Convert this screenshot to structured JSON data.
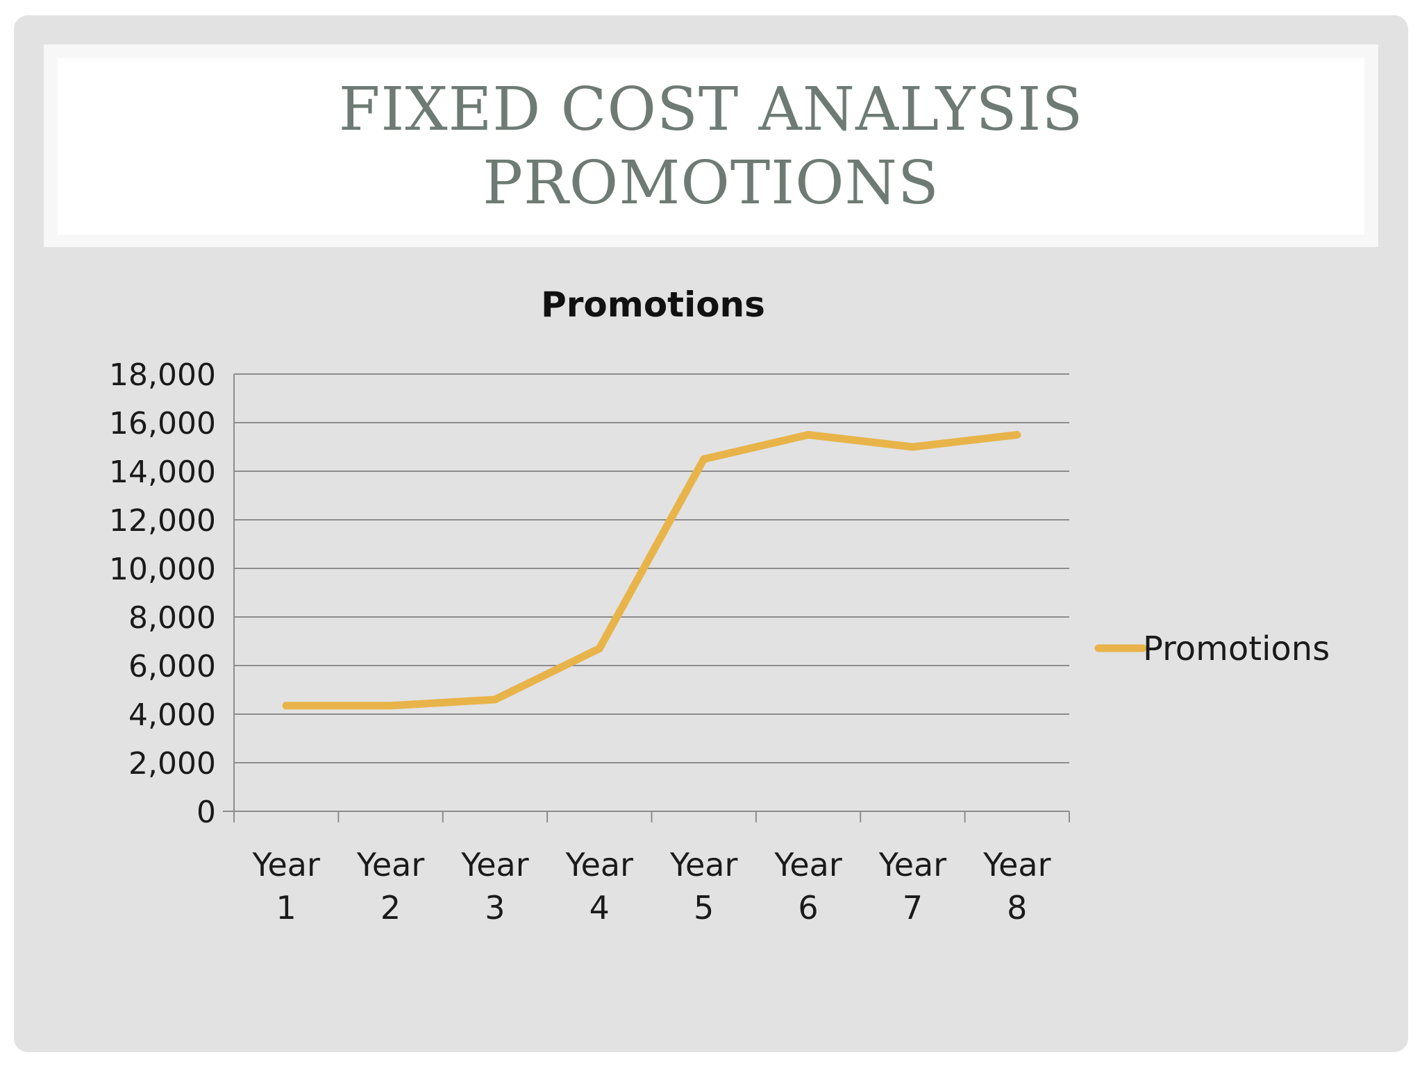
{
  "slide": {
    "title_line1": "FIXED COST ANALYSIS",
    "title_line2": "PROMOTIONS"
  },
  "colors": {
    "background": "#e2e2e3",
    "title_text": "#6e7b74",
    "series_line": "#e8b44a",
    "gridline": "#8c8c8c"
  },
  "chart_data": {
    "type": "line",
    "title": "Promotions",
    "xlabel": "",
    "ylabel": "",
    "categories": [
      "Year 1",
      "Year 2",
      "Year 3",
      "Year 4",
      "Year 5",
      "Year 6",
      "Year 7",
      "Year 8"
    ],
    "category_lines": [
      [
        "Year",
        "1"
      ],
      [
        "Year",
        "2"
      ],
      [
        "Year",
        "3"
      ],
      [
        "Year",
        "4"
      ],
      [
        "Year",
        "5"
      ],
      [
        "Year",
        "6"
      ],
      [
        "Year",
        "7"
      ],
      [
        "Year",
        "8"
      ]
    ],
    "series": [
      {
        "name": "Promotions",
        "values": [
          4350,
          4350,
          4600,
          6700,
          14500,
          15500,
          15000,
          15500
        ]
      }
    ],
    "ylim": [
      0,
      18000
    ],
    "yticks": [
      0,
      2000,
      4000,
      6000,
      8000,
      10000,
      12000,
      14000,
      16000,
      18000
    ],
    "ytick_labels": [
      "0",
      "2,000",
      "4,000",
      "6,000",
      "8,000",
      "10,000",
      "12,000",
      "14,000",
      "16,000",
      "18,000"
    ],
    "grid": true,
    "legend_position": "right"
  }
}
